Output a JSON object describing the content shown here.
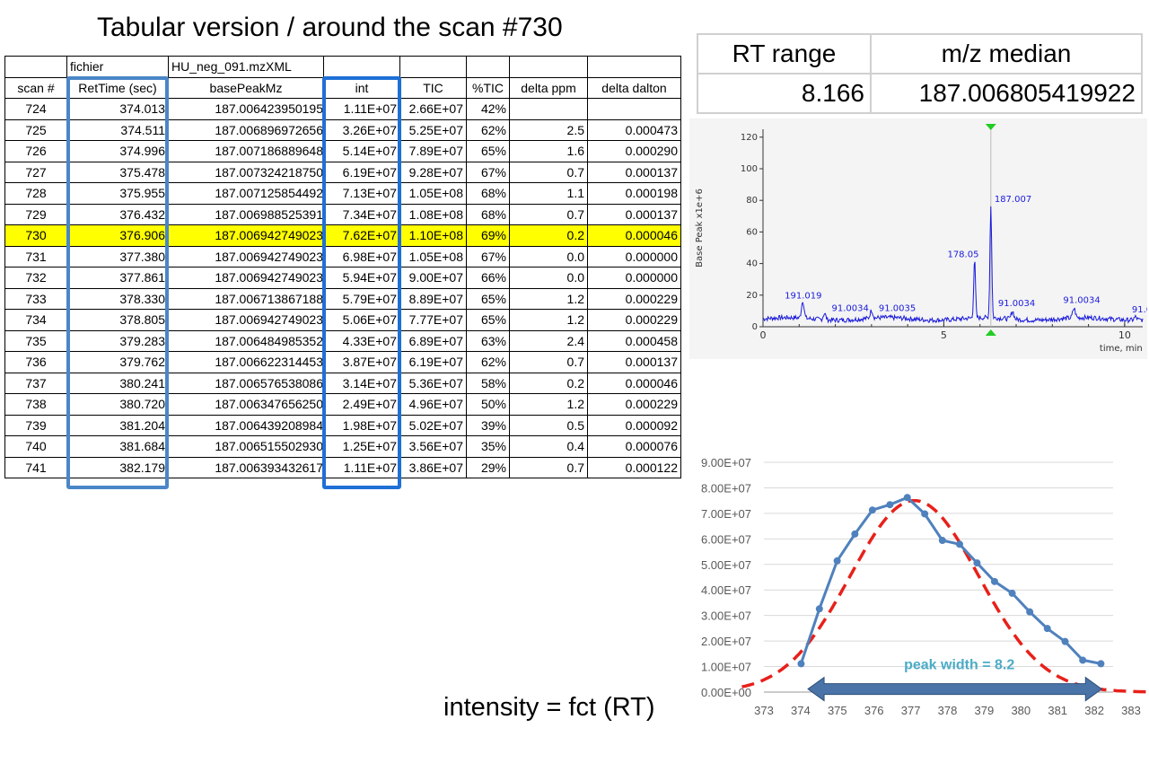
{
  "title": "Tabular version / around the scan #730",
  "footer": "intensity = fct (RT)",
  "table": {
    "meta": {
      "file_label": "fichier",
      "file_name": "HU_neg_091.mzXML"
    },
    "headers": [
      "scan #",
      "RetTime (sec)",
      "basePeakMz",
      "int",
      "TIC",
      "%TIC",
      "delta ppm",
      "delta dalton"
    ],
    "highlight_scan": "730",
    "highlight_color": "#ffff00",
    "rettime_box_color": "#4a86c8",
    "int_box_color": "#1f6fd6",
    "rows": [
      [
        "724",
        "374.013",
        "187.006423950195",
        "1.11E+07",
        "2.66E+07",
        "42%",
        "",
        ""
      ],
      [
        "725",
        "374.511",
        "187.006896972656",
        "3.26E+07",
        "5.25E+07",
        "62%",
        "2.5",
        "0.000473"
      ],
      [
        "726",
        "374.996",
        "187.007186889648",
        "5.14E+07",
        "7.89E+07",
        "65%",
        "1.6",
        "0.000290"
      ],
      [
        "727",
        "375.478",
        "187.007324218750",
        "6.19E+07",
        "9.28E+07",
        "67%",
        "0.7",
        "0.000137"
      ],
      [
        "728",
        "375.955",
        "187.007125854492",
        "7.13E+07",
        "1.05E+08",
        "68%",
        "1.1",
        "0.000198"
      ],
      [
        "729",
        "376.432",
        "187.006988525391",
        "7.34E+07",
        "1.08E+08",
        "68%",
        "0.7",
        "0.000137"
      ],
      [
        "730",
        "376.906",
        "187.006942749023",
        "7.62E+07",
        "1.10E+08",
        "69%",
        "0.2",
        "0.000046"
      ],
      [
        "731",
        "377.380",
        "187.006942749023",
        "6.98E+07",
        "1.05E+08",
        "67%",
        "0.0",
        "0.000000"
      ],
      [
        "732",
        "377.861",
        "187.006942749023",
        "5.94E+07",
        "9.00E+07",
        "66%",
        "0.0",
        "0.000000"
      ],
      [
        "733",
        "378.330",
        "187.006713867188",
        "5.79E+07",
        "8.89E+07",
        "65%",
        "1.2",
        "0.000229"
      ],
      [
        "734",
        "378.805",
        "187.006942749023",
        "5.06E+07",
        "7.77E+07",
        "65%",
        "1.2",
        "0.000229"
      ],
      [
        "735",
        "379.283",
        "187.006484985352",
        "4.33E+07",
        "6.89E+07",
        "63%",
        "2.4",
        "0.000458"
      ],
      [
        "736",
        "379.762",
        "187.006622314453",
        "3.87E+07",
        "6.19E+07",
        "62%",
        "0.7",
        "0.000137"
      ],
      [
        "737",
        "380.241",
        "187.006576538086",
        "3.14E+07",
        "5.36E+07",
        "58%",
        "0.2",
        "0.000046"
      ],
      [
        "738",
        "380.720",
        "187.006347656250",
        "2.49E+07",
        "4.96E+07",
        "50%",
        "1.2",
        "0.000229"
      ],
      [
        "739",
        "381.204",
        "187.006439208984",
        "1.98E+07",
        "5.02E+07",
        "39%",
        "0.5",
        "0.000092"
      ],
      [
        "740",
        "381.684",
        "187.006515502930",
        "1.25E+07",
        "3.56E+07",
        "35%",
        "0.4",
        "0.000076"
      ],
      [
        "741",
        "382.179",
        "187.006393432617",
        "1.11E+07",
        "3.86E+07",
        "29%",
        "0.7",
        "0.000122"
      ]
    ]
  },
  "summary": {
    "headers": [
      "RT range",
      "m/z median"
    ],
    "values": [
      "8.166",
      "187.006805419922"
    ]
  },
  "chart_data": [
    {
      "type": "line",
      "ylabel": "Base Peak x1e+6",
      "xlabel": "time, min",
      "xlim": [
        0,
        10.5
      ],
      "ylim": [
        0,
        125
      ],
      "x_ticks": [
        0,
        5,
        10
      ],
      "y_ticks": [
        0,
        20,
        40,
        60,
        80,
        100,
        120
      ],
      "color": "#1a1adb",
      "marker_color": "#22cc22",
      "marker_x": 6.3,
      "baseline": 5,
      "peaks": [
        {
          "x": 1.1,
          "y": 16,
          "label": "191.019",
          "label_x": 0.6,
          "label_y": 18
        },
        {
          "x": 1.7,
          "y": 9,
          "label": "91.0034",
          "label_x": 1.9,
          "label_y": 10
        },
        {
          "x": 3.0,
          "y": 10,
          "label": "91.0035",
          "label_x": 3.2,
          "label_y": 10
        },
        {
          "x": 5.85,
          "y": 42,
          "label": "178.05",
          "label_x": 5.1,
          "label_y": 44
        },
        {
          "x": 6.3,
          "y": 76,
          "label": "187.007",
          "label_x": 6.4,
          "label_y": 79
        },
        {
          "x": 6.9,
          "y": 10,
          "label": "91.0034",
          "label_x": 6.5,
          "label_y": 13
        },
        {
          "x": 8.6,
          "y": 11,
          "label": "91.0034",
          "label_x": 8.3,
          "label_y": 15
        },
        {
          "x": 10.3,
          "y": 7,
          "label": "91.0",
          "label_x": 10.2,
          "label_y": 9
        }
      ]
    },
    {
      "type": "line",
      "xlim": [
        373,
        383
      ],
      "ylim": [
        0,
        90000000
      ],
      "x_ticks": [
        "373",
        "374",
        "375",
        "376",
        "377",
        "378",
        "379",
        "380",
        "381",
        "382",
        "383"
      ],
      "y_ticks": [
        "0.00E+00",
        "1.00E+07",
        "2.00E+07",
        "3.00E+07",
        "4.00E+07",
        "5.00E+07",
        "6.00E+07",
        "7.00E+07",
        "8.00E+07",
        "9.00E+07"
      ],
      "grid": true,
      "series_color": "#4f81bd",
      "fit_color": "#e8201a",
      "x": [
        374.013,
        374.511,
        374.996,
        375.478,
        375.955,
        376.432,
        376.906,
        377.38,
        377.861,
        378.33,
        378.805,
        379.283,
        379.762,
        380.241,
        380.72,
        381.204,
        381.684,
        382.179
      ],
      "y": [
        11100000,
        32600000,
        51400000,
        61900000,
        71300000,
        73400000,
        76200000,
        69800000,
        59400000,
        57900000,
        50600000,
        43300000,
        38700000,
        31400000,
        24900000,
        19800000,
        12500000,
        11100000
      ],
      "fit": {
        "type": "gaussian",
        "amplitude": 75000000,
        "mean": 377.1,
        "sigma": 1.75
      },
      "annotation": {
        "text": "peak width = 8.2",
        "color": "#4bacc6",
        "arrow_color": "#4a74a8",
        "x_start": 374.2,
        "x_end": 382.2,
        "y": 1200000
      }
    }
  ]
}
